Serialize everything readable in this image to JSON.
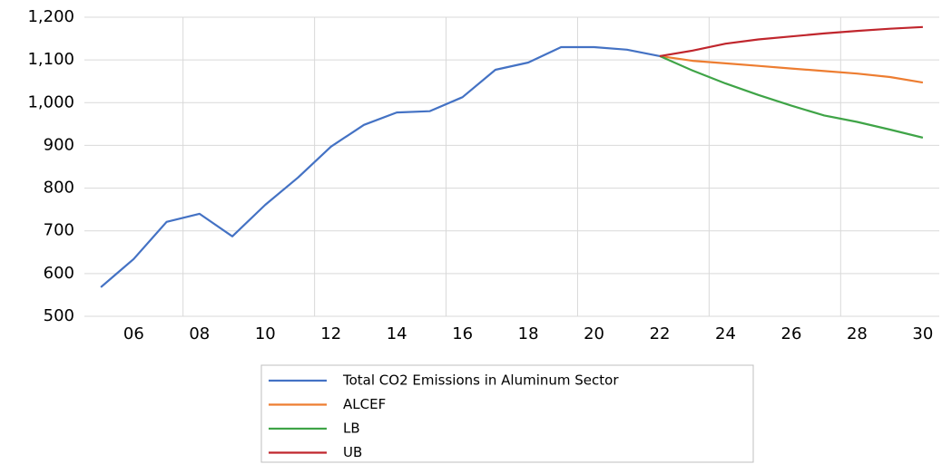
{
  "chart_data": {
    "type": "line",
    "categories": [
      null,
      "06",
      null,
      "08",
      null,
      "10",
      null,
      "12",
      null,
      "14",
      null,
      "16",
      null,
      "18",
      null,
      "20",
      null,
      "22",
      null,
      "24",
      null,
      "26",
      null,
      "28",
      null,
      "30"
    ],
    "series": [
      {
        "name": "Total CO2 Emissions in Aluminum Sector",
        "color": "#4472c4",
        "values": [
          568,
          634,
          721,
          740,
          687,
          761,
          825,
          897,
          948,
          977,
          980,
          1013,
          1077,
          1094,
          1130,
          1130,
          1124,
          1109,
          null,
          null,
          null,
          null,
          null,
          null,
          null,
          null
        ]
      },
      {
        "name": "ALCEF",
        "color": "#ed7d31",
        "values": [
          null,
          null,
          null,
          null,
          null,
          null,
          null,
          null,
          null,
          null,
          null,
          null,
          null,
          null,
          null,
          null,
          null,
          1109,
          1098,
          1092,
          1086,
          1080,
          1074,
          1068,
          1060,
          1047
        ]
      },
      {
        "name": "LB",
        "color": "#3fa447",
        "values": [
          null,
          null,
          null,
          null,
          null,
          null,
          null,
          null,
          null,
          null,
          null,
          null,
          null,
          null,
          null,
          null,
          null,
          1109,
          1075,
          1045,
          1018,
          993,
          970,
          955,
          937,
          918
        ]
      },
      {
        "name": "UB",
        "color": "#c0262d",
        "values": [
          null,
          null,
          null,
          null,
          null,
          null,
          null,
          null,
          null,
          null,
          null,
          null,
          null,
          null,
          null,
          null,
          null,
          1109,
          1122,
          1138,
          1148,
          1155,
          1162,
          1168,
          1173,
          1177
        ]
      }
    ],
    "ylim": [
      500,
      1200
    ],
    "yticks": [
      500,
      600,
      700,
      800,
      900,
      {
        "value": 1000,
        "label": "1,000"
      },
      {
        "value": 1100,
        "label": "1,100"
      },
      {
        "value": 1200,
        "label": "1,200"
      }
    ],
    "grid": true
  }
}
